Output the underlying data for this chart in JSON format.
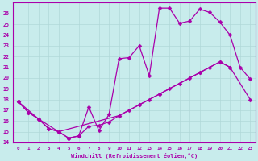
{
  "xlabel": "Windchill (Refroidissement éolien,°C)",
  "background_color": "#c8ecec",
  "grid_color": "#b0d8d8",
  "line_color": "#aa00aa",
  "xlim": [
    0,
    23
  ],
  "ylim": [
    14,
    27
  ],
  "xticks": [
    0,
    1,
    2,
    3,
    4,
    5,
    6,
    7,
    8,
    9,
    10,
    11,
    12,
    13,
    14,
    15,
    16,
    17,
    18,
    19,
    20,
    21,
    22,
    23
  ],
  "yticks": [
    14,
    15,
    16,
    17,
    18,
    19,
    20,
    21,
    22,
    23,
    24,
    25,
    26
  ],
  "series1_x": [
    0,
    1,
    2,
    3,
    4,
    5,
    6,
    7,
    8,
    9,
    10,
    11,
    12,
    13,
    14,
    15,
    16,
    17,
    18,
    19,
    20,
    21,
    22,
    23
  ],
  "series1_y": [
    17.8,
    16.8,
    16.2,
    15.3,
    15.0,
    14.4,
    14.6,
    17.3,
    15.1,
    16.6,
    21.8,
    21.9,
    23.0,
    20.2,
    26.5,
    26.5,
    25.1,
    25.3,
    26.4,
    26.1,
    25.2,
    24.0,
    21.0,
    19.9
  ],
  "series2_x": [
    0,
    1,
    2,
    3,
    4,
    5,
    6,
    7,
    8,
    9,
    10,
    11,
    12,
    13,
    14,
    15,
    16,
    17,
    18,
    19,
    20,
    21,
    22,
    23
  ],
  "series2_y": [
    17.8,
    16.8,
    16.2,
    15.3,
    15.0,
    14.4,
    14.6,
    15.5,
    15.6,
    15.9,
    16.5,
    17.0,
    17.5,
    18.0,
    18.5,
    19.0,
    19.5,
    20.0,
    20.5,
    21.0,
    21.5,
    21.0,
    null,
    null
  ],
  "series3_x": [
    0,
    2,
    4,
    10,
    12,
    14,
    18,
    20,
    21,
    23
  ],
  "series3_y": [
    17.8,
    16.2,
    15.0,
    16.5,
    17.5,
    18.5,
    20.5,
    21.5,
    21.0,
    18.0
  ]
}
